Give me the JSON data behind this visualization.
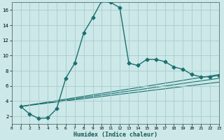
{
  "xlabel": "Humidex (Indice chaleur)",
  "bg_color": "#cce8e8",
  "grid_color": "#aacccc",
  "line_color": "#1a7070",
  "xlim": [
    0,
    23
  ],
  "ylim": [
    1,
    17
  ],
  "xticks": [
    0,
    1,
    2,
    3,
    4,
    5,
    6,
    7,
    8,
    9,
    10,
    11,
    12,
    13,
    14,
    15,
    16,
    17,
    18,
    19,
    20,
    21,
    22,
    23
  ],
  "yticks": [
    2,
    4,
    6,
    8,
    10,
    12,
    14,
    16
  ],
  "main_series": {
    "x": [
      1,
      2,
      3,
      4,
      5,
      6,
      7,
      8,
      9,
      10,
      11,
      12,
      13,
      14,
      15,
      16,
      17,
      18,
      19,
      20,
      21,
      22,
      23
    ],
    "y": [
      3.3,
      2.3,
      1.7,
      1.8,
      3.0,
      7.0,
      9.0,
      13.0,
      15.0,
      17.2,
      17.0,
      16.3,
      9.0,
      8.7,
      9.5,
      9.5,
      9.2,
      8.5,
      8.2,
      7.5,
      7.2,
      7.2,
      7.4
    ],
    "marker": "D",
    "markersize": 2.5,
    "linewidth": 1.0
  },
  "diag_lines": [
    {
      "x": [
        1,
        23
      ],
      "y": [
        3.3,
        7.5
      ]
    },
    {
      "x": [
        1,
        23
      ],
      "y": [
        3.3,
        7.0
      ]
    },
    {
      "x": [
        1,
        23
      ],
      "y": [
        3.3,
        6.5
      ]
    }
  ]
}
